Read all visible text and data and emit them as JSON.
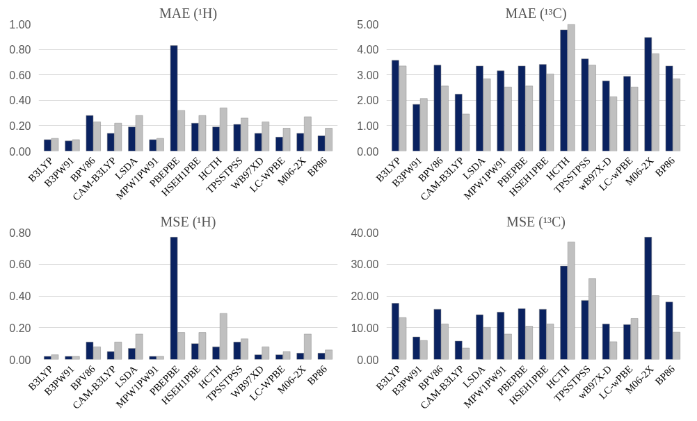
{
  "chart_data": [
    {
      "type": "bar",
      "title": "MAE (¹H)",
      "categories": [
        "B3LYP",
        "B3PW91",
        "BPV86",
        "CAM-B3LYP",
        "LSDA",
        "MPW1PW91",
        "PBEPBE",
        "HSEH1PBE",
        "HCTH",
        "TPSSTPSS",
        "WB97XD",
        "LC-WPBE",
        "M06-2X",
        "BP86"
      ],
      "series": [
        {
          "color": "#0a2260",
          "values": [
            0.09,
            0.08,
            0.28,
            0.14,
            0.19,
            0.09,
            0.83,
            0.22,
            0.19,
            0.21,
            0.14,
            0.11,
            0.14,
            0.12
          ]
        },
        {
          "color": "#c0c0c0",
          "values": [
            0.1,
            0.09,
            0.23,
            0.22,
            0.28,
            0.1,
            0.32,
            0.28,
            0.34,
            0.26,
            0.23,
            0.18,
            0.27,
            0.18
          ]
        }
      ],
      "ylim": [
        0,
        1
      ],
      "yticks": [
        {
          "value": 0,
          "label": "0.00"
        },
        {
          "value": 0.2,
          "label": "0.20"
        },
        {
          "value": 0.4,
          "label": "0.40"
        },
        {
          "value": 0.6,
          "label": "0.60"
        },
        {
          "value": 0.8,
          "label": "0.80"
        },
        {
          "value": 1,
          "label": "1.00"
        }
      ],
      "grid": "y"
    },
    {
      "type": "bar",
      "title": "MAE (¹³C)",
      "categories": [
        "B3LYP",
        "B3PW91",
        "BPV86",
        "CAM-B3LYP",
        "LSDA",
        "MPW1PW91",
        "PBEPBE",
        "HSEH1PBE",
        "HCTH",
        "TPSSTPSS",
        "wB97X-D",
        "LC-wPBE",
        "M06-2X",
        "BP86"
      ],
      "series": [
        {
          "color": "#0a2260",
          "values": [
            3.57,
            1.84,
            3.38,
            2.24,
            3.35,
            3.16,
            3.35,
            3.41,
            4.77,
            3.63,
            2.76,
            2.94,
            4.47,
            3.35
          ]
        },
        {
          "color": "#c0c0c0",
          "values": [
            3.35,
            2.07,
            2.56,
            1.46,
            2.84,
            2.52,
            2.56,
            3.03,
            4.98,
            3.38,
            2.14,
            2.52,
            3.83,
            2.84
          ]
        }
      ],
      "ylim": [
        0,
        5
      ],
      "yticks": [
        {
          "value": 0,
          "label": "0.00"
        },
        {
          "value": 1,
          "label": "1.00"
        },
        {
          "value": 2,
          "label": "2.00"
        },
        {
          "value": 3,
          "label": "3.00"
        },
        {
          "value": 4,
          "label": "4.00"
        },
        {
          "value": 5,
          "label": "5.00"
        }
      ],
      "grid": "y"
    },
    {
      "type": "bar",
      "title": "MSE (¹H)",
      "categories": [
        "B3LYP",
        "B3PW91",
        "BPV86",
        "CAM-B3LYP",
        "LSDA",
        "MPW1PW91",
        "PBEPBE",
        "HSEH1PBE",
        "HCTH",
        "TPSSTPSS",
        "WB97XD",
        "LC-WPBE",
        "M06-2X",
        "BP86"
      ],
      "series": [
        {
          "color": "#0a2260",
          "values": [
            0.02,
            0.02,
            0.11,
            0.05,
            0.07,
            0.02,
            0.77,
            0.1,
            0.08,
            0.11,
            0.03,
            0.03,
            0.04,
            0.04
          ]
        },
        {
          "color": "#c0c0c0",
          "values": [
            0.03,
            0.02,
            0.08,
            0.11,
            0.16,
            0.02,
            0.17,
            0.17,
            0.29,
            0.13,
            0.08,
            0.05,
            0.16,
            0.06
          ]
        }
      ],
      "ylim": [
        0,
        0.8
      ],
      "yticks": [
        {
          "value": 0,
          "label": "0.00"
        },
        {
          "value": 0.2,
          "label": "0.20"
        },
        {
          "value": 0.4,
          "label": "0.40"
        },
        {
          "value": 0.6,
          "label": "0.60"
        },
        {
          "value": 0.8,
          "label": "0.80"
        }
      ],
      "grid": "y"
    },
    {
      "type": "bar",
      "title": "MSE (¹³C)",
      "categories": [
        "B3LYP",
        "B3PW91",
        "BPV86",
        "CAM-B3LYP",
        "LSDA",
        "MPW1PW91",
        "PBEPBE",
        "HSEH1PBE",
        "HCTH",
        "TPSSTPSS",
        "wB97X-D",
        "LC-wPBE",
        "M06-2X",
        "BP86"
      ],
      "series": [
        {
          "color": "#0a2260",
          "values": [
            17.7,
            7.1,
            15.8,
            5.8,
            14.1,
            14.9,
            16.0,
            15.8,
            29.4,
            18.6,
            11.2,
            11.0,
            38.5,
            18.1
          ]
        },
        {
          "color": "#c0c0c0",
          "values": [
            13.2,
            6.0,
            11.2,
            3.6,
            10.1,
            8.0,
            10.5,
            11.2,
            37.0,
            25.5,
            5.6,
            12.9,
            20.1,
            8.6
          ]
        }
      ],
      "ylim": [
        0,
        40
      ],
      "yticks": [
        {
          "value": 0,
          "label": "0.00"
        },
        {
          "value": 10,
          "label": "10.00"
        },
        {
          "value": 20,
          "label": "20.00"
        },
        {
          "value": 30,
          "label": "30.00"
        },
        {
          "value": 40,
          "label": "40.00"
        }
      ],
      "grid": "y"
    }
  ]
}
